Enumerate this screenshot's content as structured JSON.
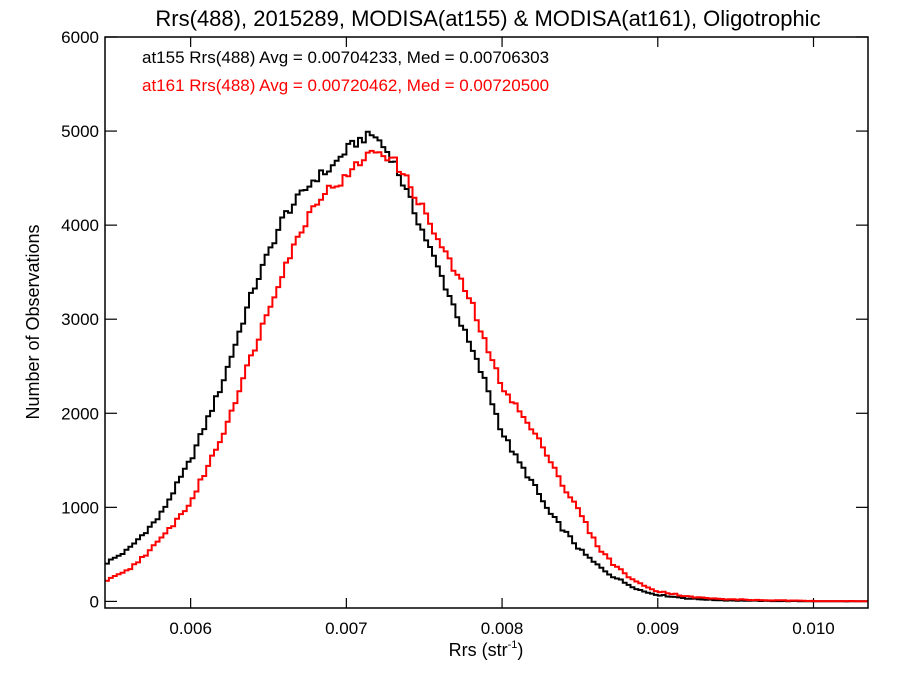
{
  "chart_data": {
    "type": "line",
    "step": true,
    "title": "Rrs(488), 2015289, MODISA(at155) & MODISA(at161), Oligotrophic",
    "xlabel": "Rrs (str",
    "xlabel_sup": "-1",
    "xlabel_close": ")",
    "ylabel": "Number of Observations",
    "xlim": [
      0.00545,
      0.01035
    ],
    "ylim": [
      -70,
      6000
    ],
    "xticks": [
      0.006,
      0.007,
      0.008,
      0.009,
      0.01
    ],
    "xtick_labels": [
      "0.006",
      "0.007",
      "0.008",
      "0.009",
      "0.010"
    ],
    "yticks": [
      0,
      1000,
      2000,
      3000,
      4000,
      5000,
      6000
    ],
    "ytick_labels": [
      "0",
      "1000",
      "2000",
      "3000",
      "4000",
      "5000",
      "6000"
    ],
    "grid": false,
    "legend": "top-left",
    "series": [
      {
        "name": "at155",
        "color": "#000000",
        "annotation": "at155 Rrs(488) Avg = 0.00704233, Med = 0.00706303",
        "x": [
          0.00545,
          0.0056,
          0.0058,
          0.006,
          0.0062,
          0.0064,
          0.0066,
          0.0068,
          0.0069,
          0.007,
          0.0071,
          0.00718,
          0.0073,
          0.0074,
          0.0075,
          0.0076,
          0.0077,
          0.0078,
          0.0079,
          0.008,
          0.0081,
          0.0082,
          0.0083,
          0.0084,
          0.0085,
          0.0086,
          0.0087,
          0.0088,
          0.0089,
          0.009,
          0.0092,
          0.0094,
          0.0097,
          0.01,
          0.01035
        ],
        "y": [
          400,
          550,
          900,
          1500,
          2300,
          3300,
          4100,
          4500,
          4600,
          4800,
          4920,
          4960,
          4700,
          4300,
          3900,
          3500,
          3100,
          2700,
          2300,
          1800,
          1500,
          1250,
          950,
          750,
          550,
          400,
          280,
          190,
          110,
          70,
          30,
          12,
          5,
          2,
          1
        ]
      },
      {
        "name": "at161",
        "color": "#ff0000",
        "annotation": "at161 Rrs(488) Avg = 0.00720462, Med = 0.00720500",
        "x": [
          0.00545,
          0.0056,
          0.0058,
          0.006,
          0.0062,
          0.0064,
          0.0066,
          0.0068,
          0.0069,
          0.007,
          0.0071,
          0.0072,
          0.0073,
          0.0074,
          0.0075,
          0.0076,
          0.0077,
          0.0078,
          0.0079,
          0.008,
          0.0081,
          0.0082,
          0.0083,
          0.0084,
          0.0085,
          0.0086,
          0.0087,
          0.0088,
          0.0089,
          0.009,
          0.0092,
          0.0094,
          0.0097,
          0.01,
          0.01035
        ],
        "y": [
          210,
          330,
          640,
          1050,
          1750,
          2650,
          3550,
          4250,
          4400,
          4500,
          4700,
          4800,
          4700,
          4450,
          4150,
          3800,
          3500,
          3200,
          2700,
          2300,
          2050,
          1800,
          1550,
          1200,
          950,
          620,
          420,
          280,
          170,
          110,
          50,
          25,
          12,
          5,
          2
        ]
      }
    ]
  }
}
